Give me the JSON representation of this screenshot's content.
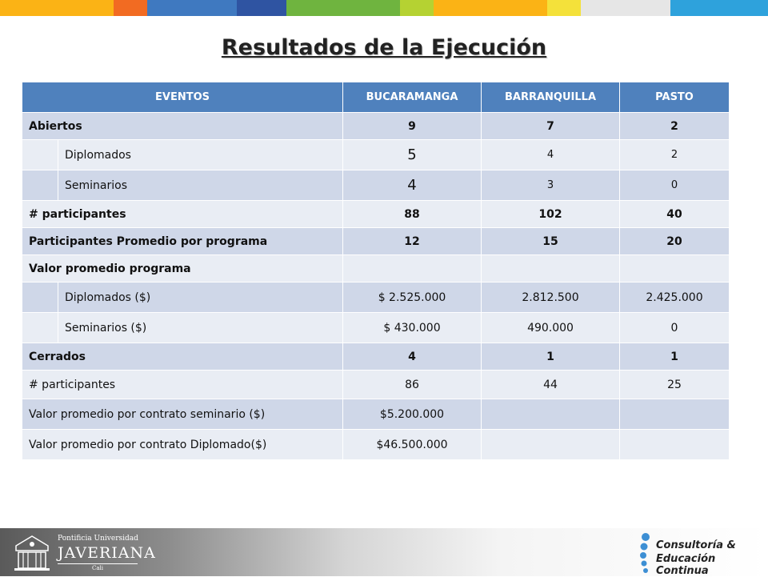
{
  "top_bar_colors": [
    "#fbb315",
    "#f26b22",
    "#3f79c0",
    "#2f54a2",
    "#6fb43f",
    "#b5d232",
    "#fbb315",
    "#f4e13a",
    "#e6e6e6",
    "#2ea2dc"
  ],
  "title": "Resultados de la Ejecución",
  "table": {
    "headers": [
      "EVENTOS",
      "BUCARAMANGA",
      "BARRANQUILLA",
      "PASTO"
    ],
    "rows": [
      {
        "label": "Abiertos",
        "values": [
          "9",
          "7",
          "2"
        ]
      },
      {
        "label": "Diplomados",
        "values": [
          "5",
          "4",
          "2"
        ]
      },
      {
        "label": "Seminarios",
        "values": [
          "4",
          "3",
          "0"
        ]
      },
      {
        "label": "# participantes",
        "values": [
          "88",
          "102",
          "40"
        ]
      },
      {
        "label": "Participantes Promedio por programa",
        "values": [
          "12",
          "15",
          "20"
        ]
      },
      {
        "label": "Valor promedio programa",
        "values": [
          "",
          "",
          ""
        ]
      },
      {
        "label": "Diplomados ($)",
        "values": [
          "$ 2.525.000",
          "2.812.500",
          "2.425.000"
        ]
      },
      {
        "label": "Seminarios ($)",
        "values": [
          "$ 430.000",
          "490.000",
          "0"
        ]
      },
      {
        "label": "Cerrados",
        "values": [
          "4",
          "1",
          "1"
        ]
      },
      {
        "label": "# participantes",
        "values": [
          "86",
          "44",
          "25"
        ]
      },
      {
        "label": "Valor promedio por contrato seminario ($)",
        "values": [
          "$5.200.000",
          "",
          ""
        ]
      },
      {
        "label": "Valor promedio por contrato Diplomado($)",
        "values": [
          "$46.500.000",
          "",
          ""
        ]
      }
    ]
  },
  "footer": {
    "university_line1": "Pontificia Universidad",
    "university_line2": "JAVERIANA",
    "university_city": "Cali",
    "unit_line1": "Consultoría &",
    "unit_line2": "Educación Continua"
  },
  "colors": {
    "header_blue": "#4f81bd",
    "row_dark": "#cfd7e8",
    "row_light": "#e9edf4"
  }
}
